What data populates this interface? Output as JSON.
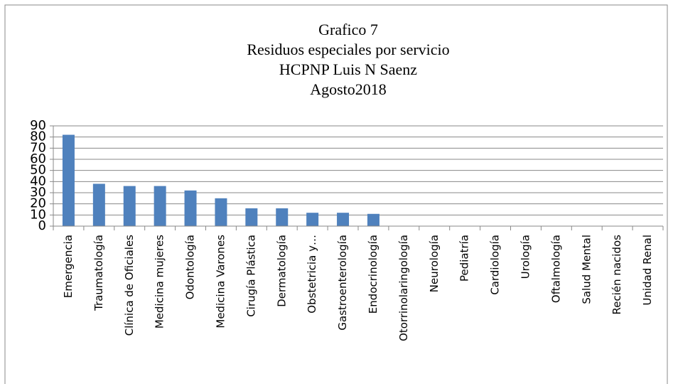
{
  "chart_data": {
    "type": "bar",
    "title": [
      "Grafico 7",
      "Residuos especiales por servicio",
      "HCPNP Luis N Saenz",
      "Agosto2018"
    ],
    "categories": [
      "Emergencia",
      "Traumatología",
      "Clínica de Oficiales",
      "Medicina mujeres",
      "Odontología",
      "Medicina Varones",
      "Cirugía Plástica",
      "Dermatología",
      "Obstetricia y…",
      "Gastroenterología",
      "Endocrinología",
      "Otorrinolaringología",
      "Neurología",
      "Pediatría",
      "Cardiología",
      "Urología",
      "Oftalmología",
      "Salud Mental",
      "Recién nacidos",
      "Unidad Renal"
    ],
    "values": [
      82,
      38,
      36,
      36,
      32,
      25,
      16,
      16,
      12,
      12,
      11,
      0,
      0,
      0,
      0,
      0,
      0,
      0,
      0,
      0
    ],
    "color": "#4f81bd",
    "ylim": [
      0,
      90
    ],
    "yticks": [
      0,
      10,
      20,
      30,
      40,
      50,
      60,
      70,
      80,
      90
    ],
    "grid": true
  }
}
